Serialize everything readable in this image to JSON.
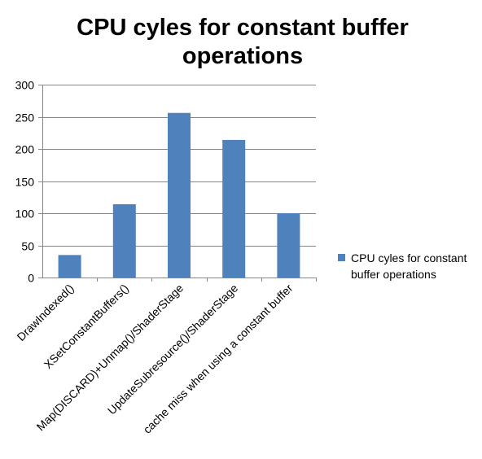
{
  "chart_data": {
    "type": "bar",
    "title": "CPU cyles for constant buffer operations",
    "title_lines": [
      "CPU cyles for constant buffer",
      "operations"
    ],
    "xlabel": "",
    "ylabel": "",
    "categories": [
      "DrawIndexed()",
      "XSetConstantBuffers()",
      "Map(DISCARD)+Unmap()/ShaderStage",
      "UpdateSubresource()/ShaderStage",
      "cache miss when using a constant buffer"
    ],
    "series": [
      {
        "name": "CPU cyles for constant buffer operations",
        "legend_lines": [
          "CPU cyles for constant",
          "buffer operations"
        ],
        "color": "#4F81BD",
        "values": [
          35,
          114,
          256,
          214,
          100
        ]
      }
    ],
    "ylim": [
      0,
      300
    ],
    "yticks": [
      0,
      50,
      100,
      150,
      200,
      250,
      300
    ],
    "grid": true,
    "legend_position": "right"
  }
}
